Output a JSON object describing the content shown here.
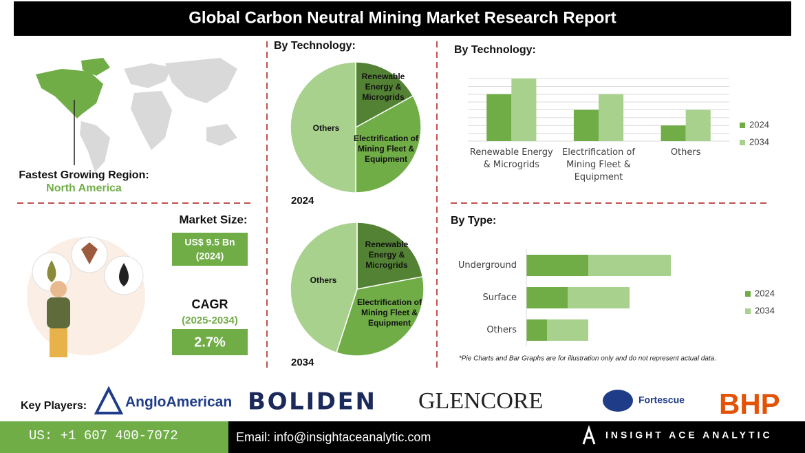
{
  "header": {
    "title": "Global Carbon Neutral Mining Market Research Report"
  },
  "region": {
    "label": "Fastest Growing Region:",
    "value": "North America"
  },
  "market": {
    "size_label": "Market Size:",
    "size_value": "US$ 9.5 Bn",
    "size_year": "(2024)",
    "cagr_label": "CAGR",
    "cagr_period": "(2025-2034)",
    "cagr_value": "2.7%"
  },
  "chart_data": [
    {
      "type": "pie",
      "title": "By Technology:",
      "caption": "2024",
      "categories": [
        "Renewable Energy & Microgrids",
        "Electrification of Mining Fleet & Equipment",
        "Others"
      ],
      "values": [
        17,
        33,
        50
      ],
      "colors": [
        "#548235",
        "#70ad47",
        "#a9d18e"
      ]
    },
    {
      "type": "pie",
      "caption": "2034",
      "categories": [
        "Renewable Energy & Microgrids",
        "Electrification of Mining Fleet & Equipment",
        "Others"
      ],
      "values": [
        22,
        33,
        45
      ],
      "colors": [
        "#548235",
        "#70ad47",
        "#a9d18e"
      ]
    },
    {
      "type": "bar",
      "title": "By Technology:",
      "categories": [
        "Renewable Energy & Microgrids",
        "Electrification of Mining Fleet & Equipment",
        "Others"
      ],
      "series": [
        {
          "name": "2024",
          "color": "#70ad47",
          "values": [
            3,
            2,
            1
          ]
        },
        {
          "name": "2034",
          "color": "#a9d18e",
          "values": [
            4,
            3,
            2
          ]
        }
      ],
      "ylim": [
        0,
        4.4
      ],
      "yticks": [
        0,
        0.5,
        1,
        1.5,
        2,
        2.5,
        3,
        3.5,
        4
      ],
      "grid": true,
      "legend": "right"
    },
    {
      "type": "hbar",
      "title": "By Type:",
      "stacked": true,
      "categories": [
        "Underground",
        "Surface",
        "Others"
      ],
      "series": [
        {
          "name": "2024",
          "color": "#70ad47",
          "values": [
            3,
            2,
            1
          ]
        },
        {
          "name": "2034",
          "color": "#a9d18e",
          "values": [
            4,
            3,
            2
          ]
        }
      ],
      "xlim": [
        0,
        9.5
      ],
      "legend": "right"
    }
  ],
  "note": "*Pie Charts and Bar Graphs are for illustration only and do not represent actual data.",
  "footer": {
    "key_players_label": "Key Players:",
    "players": [
      "AngloAmerican",
      "BOLIDEN",
      "GLENCORE",
      "Fortescue",
      "BHP"
    ],
    "phone": "US: +1 607 400-7072",
    "email": "Email: info@insightaceanalytic.com",
    "brand": "INSIGHT ACE ANALYTIC"
  }
}
